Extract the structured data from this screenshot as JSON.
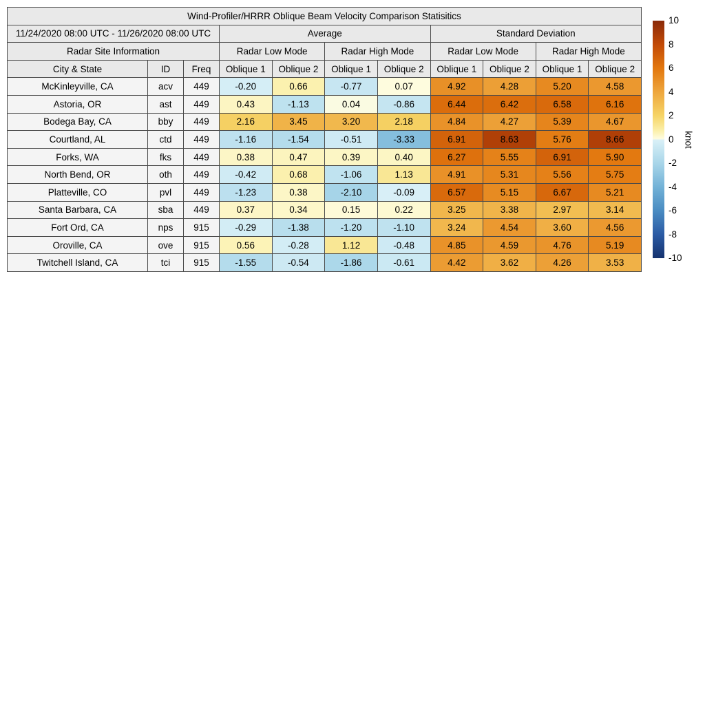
{
  "chart_data": {
    "type": "table",
    "title": "Wind-Profiler/HRRR Oblique Beam Velocity Comparison Statisitics",
    "date_range": "11/24/2020 08:00 UTC - 11/26/2020 08:00 UTC",
    "site_info_header": "Radar Site Information",
    "group_headers": [
      "Average",
      "Standard Deviation"
    ],
    "mode_headers": [
      "Radar Low Mode",
      "Radar High Mode",
      "Radar Low Mode",
      "Radar High Mode"
    ],
    "base_col_headers": [
      "City & State",
      "ID",
      "Freq"
    ],
    "oblique_headers": [
      "Oblique 1",
      "Oblique 2",
      "Oblique 1",
      "Oblique 2",
      "Oblique 1",
      "Oblique 2",
      "Oblique 1",
      "Oblique 2"
    ],
    "rows": [
      {
        "city": "McKinleyville, CA",
        "id": "acv",
        "freq": "449",
        "values": [
          "-0.20",
          "0.66",
          "-0.77",
          "0.07",
          "4.92",
          "4.28",
          "5.20",
          "4.58"
        ]
      },
      {
        "city": "Astoria, OR",
        "id": "ast",
        "freq": "449",
        "values": [
          "0.43",
          "-1.13",
          "0.04",
          "-0.86",
          "6.44",
          "6.42",
          "6.58",
          "6.16"
        ]
      },
      {
        "city": "Bodega Bay, CA",
        "id": "bby",
        "freq": "449",
        "values": [
          "2.16",
          "3.45",
          "3.20",
          "2.18",
          "4.84",
          "4.27",
          "5.39",
          "4.67"
        ]
      },
      {
        "city": "Courtland, AL",
        "id": "ctd",
        "freq": "449",
        "values": [
          "-1.16",
          "-1.54",
          "-0.51",
          "-3.33",
          "6.91",
          "8.63",
          "5.76",
          "8.66"
        ]
      },
      {
        "city": "Forks, WA",
        "id": "fks",
        "freq": "449",
        "values": [
          "0.38",
          "0.47",
          "0.39",
          "0.40",
          "6.27",
          "5.55",
          "6.91",
          "5.90"
        ]
      },
      {
        "city": "North Bend, OR",
        "id": "oth",
        "freq": "449",
        "values": [
          "-0.42",
          "0.68",
          "-1.06",
          "1.13",
          "4.91",
          "5.31",
          "5.56",
          "5.75"
        ]
      },
      {
        "city": "Platteville, CO",
        "id": "pvl",
        "freq": "449",
        "values": [
          "-1.23",
          "0.38",
          "-2.10",
          "-0.09",
          "6.57",
          "5.15",
          "6.67",
          "5.21"
        ]
      },
      {
        "city": "Santa Barbara, CA",
        "id": "sba",
        "freq": "449",
        "values": [
          "0.37",
          "0.34",
          "0.15",
          "0.22",
          "3.25",
          "3.38",
          "2.97",
          "3.14"
        ]
      },
      {
        "city": "Fort Ord, CA",
        "id": "nps",
        "freq": "915",
        "values": [
          "-0.29",
          "-1.38",
          "-1.20",
          "-1.10",
          "3.24",
          "4.54",
          "3.60",
          "4.56"
        ]
      },
      {
        "city": "Oroville, CA",
        "id": "ove",
        "freq": "915",
        "values": [
          "0.56",
          "-0.28",
          "1.12",
          "-0.48",
          "4.85",
          "4.59",
          "4.76",
          "5.19"
        ]
      },
      {
        "city": "Twitchell Island, CA",
        "id": "tci",
        "freq": "915",
        "values": [
          "-1.55",
          "-0.54",
          "-1.86",
          "-0.61",
          "4.42",
          "3.62",
          "4.26",
          "3.53"
        ]
      }
    ],
    "colorbar": {
      "label": "knot",
      "vmin": -10,
      "vmax": 10,
      "ticks": [
        "10",
        "8",
        "6",
        "4",
        "2",
        "0",
        "-2",
        "-4",
        "-6",
        "-8",
        "-10"
      ],
      "anchors": [
        [
          10,
          "#8a2a08"
        ],
        [
          8,
          "#c24a07"
        ],
        [
          6,
          "#e2770e"
        ],
        [
          4,
          "#eea63d"
        ],
        [
          2,
          "#f6d466"
        ],
        [
          0.7,
          "#fbf0ac"
        ],
        [
          0.05,
          "#fefce0"
        ],
        [
          -0.05,
          "#d9f0f7"
        ],
        [
          -2,
          "#a9d6e9"
        ],
        [
          -4,
          "#73b2d7"
        ],
        [
          -6,
          "#4a8cc2"
        ],
        [
          -8,
          "#2b5ba5"
        ],
        [
          -10,
          "#15326e"
        ]
      ]
    }
  },
  "colors": {
    "header_bg": "#e9e9e9",
    "label_cell_bg": "#f4f4f4",
    "grid": "#4a4a4a",
    "page_bg": "#ffffff"
  }
}
